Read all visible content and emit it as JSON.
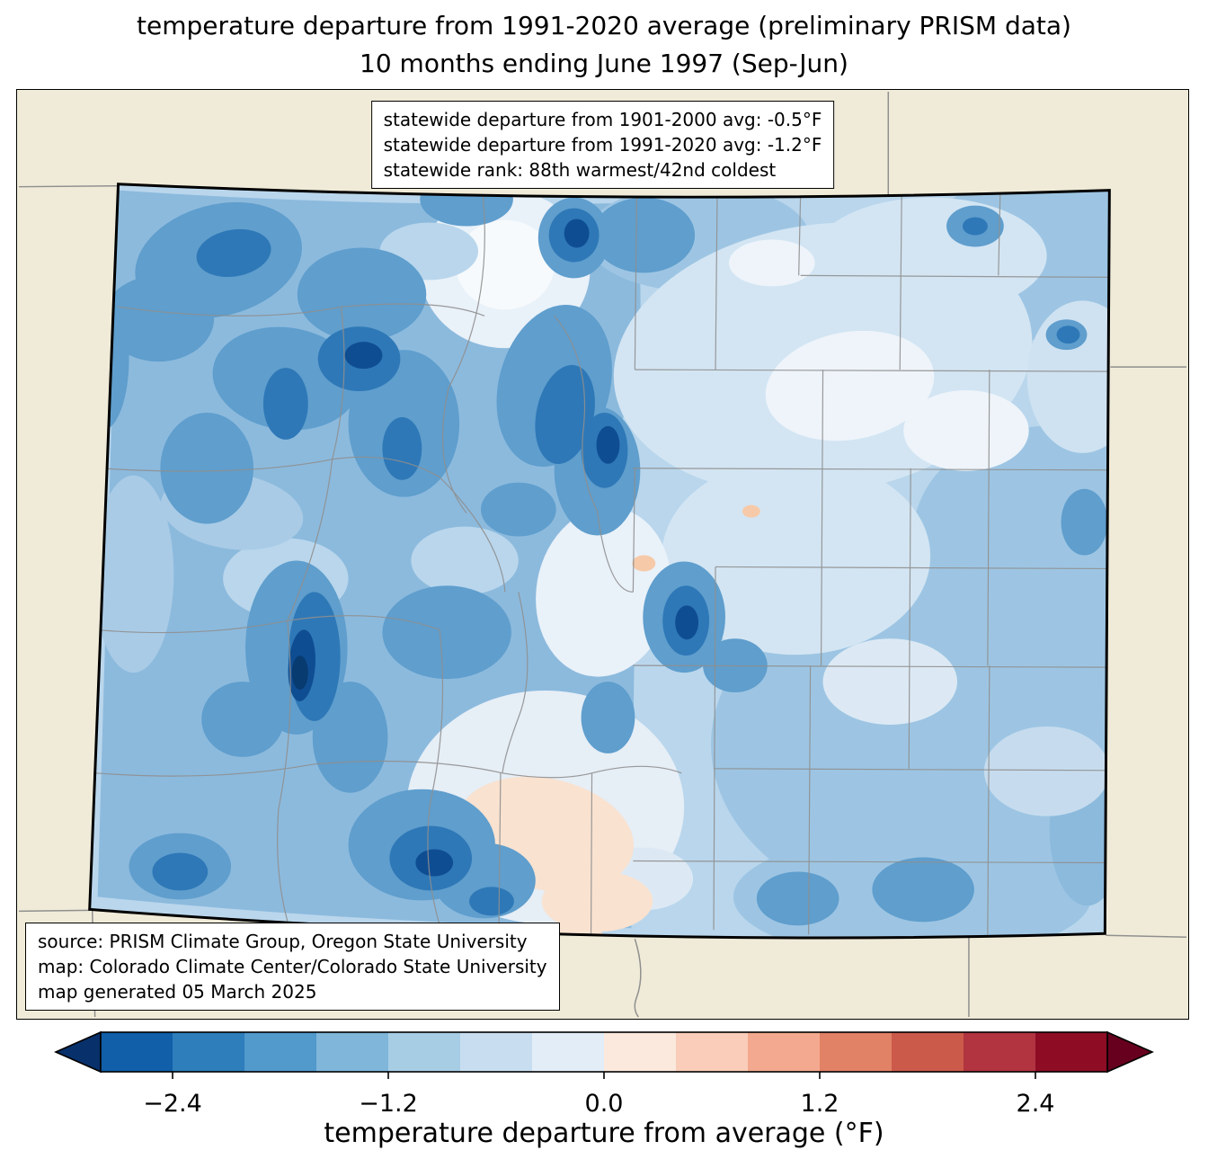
{
  "title": {
    "line1": "temperature departure from 1991-2020 average (preliminary PRISM data)",
    "line2": "10 months ending June 1997 (Sep-Jun)"
  },
  "stats_box": {
    "line1": "statewide departure from 1901-2000 avg: -0.5°F",
    "line2": "statewide departure from 1991-2020 avg: -1.2°F",
    "line3": "statewide rank: 88th warmest/42nd coldest"
  },
  "source_box": {
    "line1": "source: PRISM Climate Group, Oregon State University",
    "line2": "map: Colorado Climate Center/Colorado State University",
    "line3": "map generated 05 March 2025"
  },
  "map": {
    "region": "Colorado",
    "background": "#f0ebd8",
    "base_fill": "#b9d6ec",
    "state_border_color": "#000000",
    "county_line_color": "#8f8f8f"
  },
  "colorbar": {
    "label": "temperature departure from average (°F)",
    "range": [
      -2.8,
      2.8
    ],
    "under_color": "#08306b",
    "over_color": "#67001f",
    "segments": [
      "#115fa8",
      "#2e7ebc",
      "#5299cc",
      "#7fb6da",
      "#a7cde5",
      "#c8def0",
      "#e2edf7",
      "#fbe9dd",
      "#f9cdb9",
      "#f2a98f",
      "#e18165",
      "#cc5a4a",
      "#b13440",
      "#8e0d25"
    ],
    "ticks": [
      {
        "value": -2.4,
        "label": "−2.4"
      },
      {
        "value": -1.2,
        "label": "−1.2"
      },
      {
        "value": 0.0,
        "label": "0.0"
      },
      {
        "value": 1.2,
        "label": "1.2"
      },
      {
        "value": 2.4,
        "label": "2.4"
      }
    ]
  }
}
